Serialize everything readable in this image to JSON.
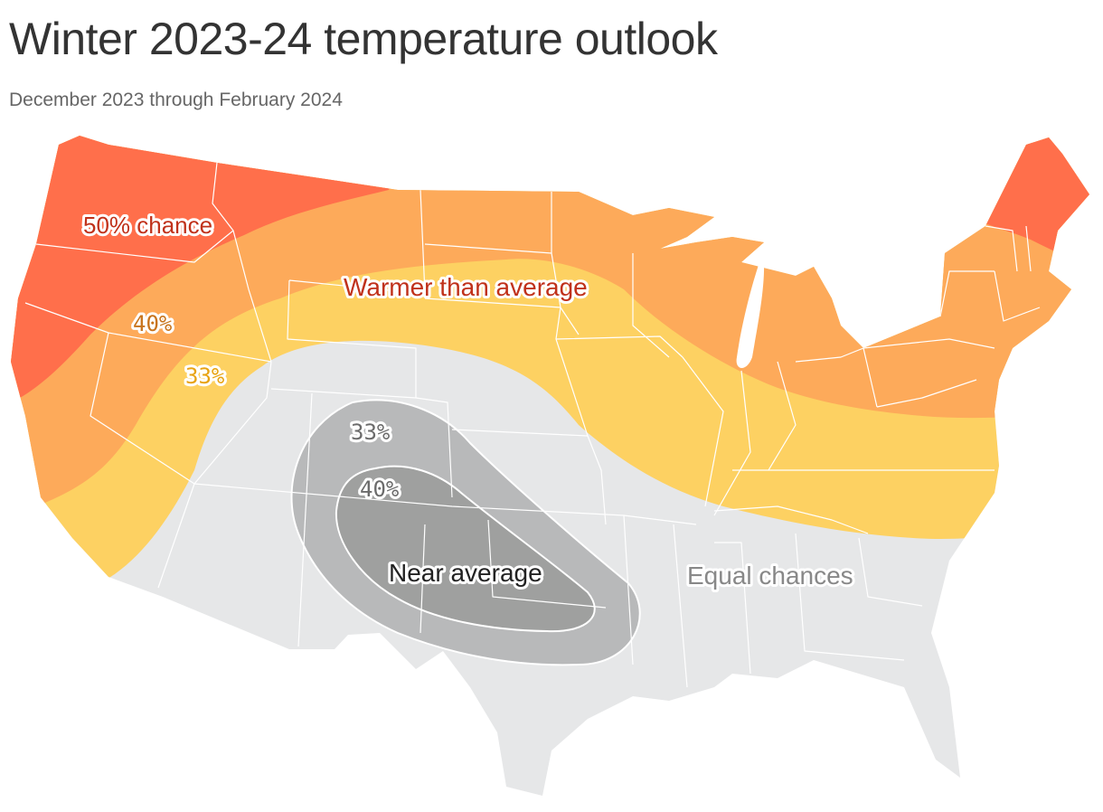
{
  "header": {
    "title": "Winter 2023-24 temperature outlook",
    "subtitle": "December 2023 through February 2024"
  },
  "map_labels": {
    "warm_50": "50% chance",
    "warm_40": "40%",
    "warm_33": "33%",
    "warm_category": "Warmer than average",
    "near_33": "33%",
    "near_40": "40%",
    "near_category": "Near average",
    "equal_category": "Equal chances"
  },
  "colors": {
    "warm_50": "#ff6f4b",
    "warm_40": "#fdaa5a",
    "warm_33": "#fdd162",
    "equal": "#e6e7e8",
    "near_33": "#b8b9ba",
    "near_40": "#9fa09f",
    "warm_50_text": "#c0311a",
    "warm_40_text": "#c8741c",
    "warm_33_text": "#e8a312",
    "near_text": "#6b6b6b",
    "near_category_text": "#222222",
    "equal_text": "#888888"
  }
}
